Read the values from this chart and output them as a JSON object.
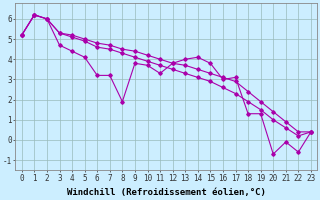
{
  "title": "",
  "xlabel": "Windchill (Refroidissement éolien,°C)",
  "ylabel": "",
  "bg_color": "#cceeff",
  "line_color": "#aa00aa",
  "xlim": [
    -0.5,
    23.5
  ],
  "ylim": [
    -1.5,
    6.8
  ],
  "yticks": [
    -1,
    0,
    1,
    2,
    3,
    4,
    5,
    6
  ],
  "xticks": [
    0,
    1,
    2,
    3,
    4,
    5,
    6,
    7,
    8,
    9,
    10,
    11,
    12,
    13,
    14,
    15,
    16,
    17,
    18,
    19,
    20,
    21,
    22,
    23
  ],
  "main_y": [
    5.2,
    6.2,
    6.0,
    4.7,
    4.4,
    4.1,
    3.2,
    3.2,
    1.9,
    3.8,
    3.7,
    3.3,
    3.8,
    4.0,
    4.1,
    3.8,
    3.0,
    3.1,
    1.3,
    1.3,
    -0.7,
    -0.1,
    -0.6,
    0.4
  ],
  "line2_y": [
    5.2,
    6.2,
    6.0,
    5.3,
    5.2,
    5.0,
    4.8,
    4.7,
    4.5,
    4.4,
    4.2,
    4.0,
    3.8,
    3.7,
    3.5,
    3.3,
    3.1,
    2.9,
    2.4,
    1.9,
    1.4,
    0.9,
    0.4,
    0.4
  ],
  "line3_y": [
    5.2,
    6.2,
    6.0,
    5.3,
    5.1,
    4.9,
    4.6,
    4.5,
    4.3,
    4.1,
    3.9,
    3.7,
    3.5,
    3.3,
    3.1,
    2.9,
    2.6,
    2.3,
    1.9,
    1.5,
    1.0,
    0.6,
    0.2,
    0.4
  ],
  "grid_color": "#99bbbb",
  "tick_fontsize": 5.5,
  "xlabel_fontsize": 6.5
}
